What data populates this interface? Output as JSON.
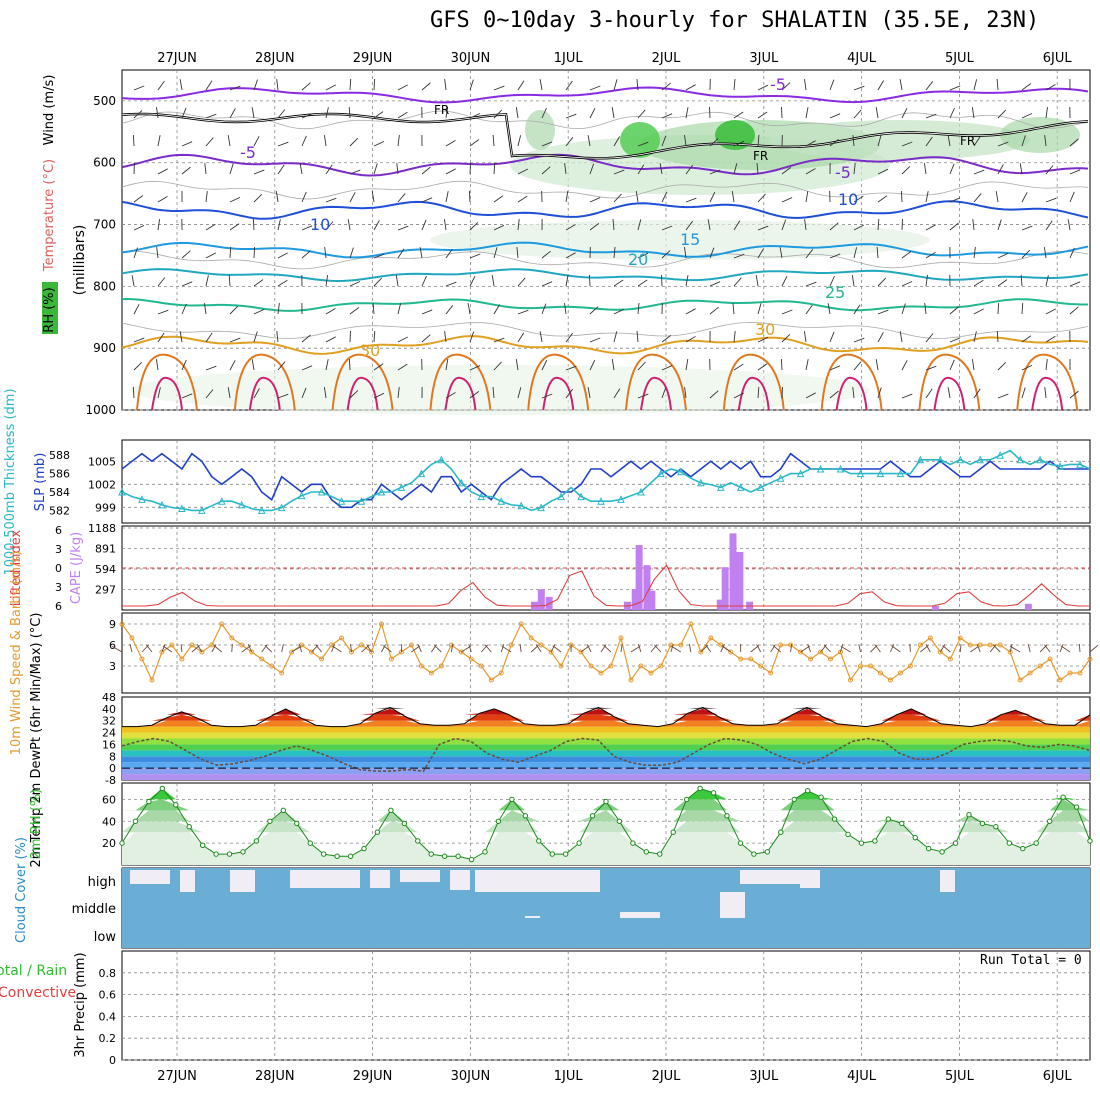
{
  "title": "GFS 0~10day 3-hourly for SHALATIN (35.5E, 23N)",
  "date_labels": [
    "27JUN",
    "28JUN",
    "29JUN",
    "30JUN",
    "1JUL",
    "2JUL",
    "3JUL",
    "4JUL",
    "5JUL",
    "6JUL"
  ],
  "run_total_label": "Run Total = 0",
  "colors": {
    "grid": "#888888",
    "rh_green": "#2e9e2e",
    "slp": "#1f3fc8",
    "thickness": "#2ab8c8",
    "lifted": "#e04040",
    "cape": "#c080f0",
    "wind": "#e69a2e",
    "barb": "#6b4a3a",
    "dewpt": "#6a4a3a",
    "rh2m": "#2ebf2e",
    "cloud": "#6aaed6",
    "cloud_clear": "#f0eef4"
  },
  "chart_data": [
    {
      "type": "contour",
      "panel": "upper-air",
      "ylabel_parts": [
        "RH (%)",
        "Temperature (°C)",
        "Wind (m/s)"
      ],
      "ylabel_axis": "(millibars)",
      "yticks": [
        500,
        600,
        700,
        800,
        900,
        1000
      ],
      "ylim": [
        450,
        1000
      ],
      "isotherm_labels": [
        {
          "text": "-5",
          "x": 6.5
        },
        {
          "text": "-5",
          "x": 0.9
        },
        {
          "text": "-5",
          "x": 5.2
        },
        {
          "text": "10",
          "x": 1.4
        },
        {
          "text": "10",
          "x": 5.5
        },
        {
          "text": "15",
          "x": 4.7
        },
        {
          "text": "20",
          "x": 4.4
        },
        {
          "text": "25",
          "x": 5.7
        },
        {
          "text": "30",
          "x": 5.1
        },
        {
          "text": "30",
          "x": 2.0
        }
      ],
      "freezing_label": "FR"
    },
    {
      "type": "line",
      "panel": "slp-thickness",
      "ylabel_left": "1000-500mb Thickness (dm)",
      "ylabel_right": "SLP (mb)",
      "yticks_thickness": [
        582,
        584,
        586,
        588
      ],
      "yticks_slp": [
        999,
        1002,
        1005
      ],
      "series": [
        {
          "name": "SLP (mb)",
          "values": [
            1004,
            1005,
            1006,
            1005,
            1006,
            1005,
            1004,
            1006,
            1005,
            1003,
            1002,
            1003,
            1004,
            1003,
            1001,
            1000,
            1003,
            1002,
            1001,
            1002,
            1002,
            1000,
            999,
            999,
            1000,
            1000,
            1002,
            1001,
            1000,
            1001,
            1002,
            1001,
            1003,
            1003,
            1001,
            1002,
            1001,
            1000,
            1002,
            1003,
            1004,
            1003,
            1003,
            1002,
            1001,
            1001,
            1002,
            1004,
            1004,
            1003,
            1004,
            1005,
            1004,
            1005,
            1004,
            1003,
            1004,
            1003,
            1004,
            1005,
            1004,
            1005,
            1004,
            1005,
            1003,
            1003,
            1004,
            1006,
            1005,
            1004,
            1004,
            1004,
            1004,
            1004,
            1004,
            1004,
            1004,
            1005,
            1004,
            1003,
            1003,
            1004,
            1005,
            1004,
            1003,
            1003,
            1004,
            1005,
            1004,
            1004,
            1004,
            1004,
            1004,
            1005,
            1004,
            1004,
            1004,
            1004
          ]
        },
        {
          "name": "1000-500mb Thickness (dm)",
          "values": [
            584.0,
            583.5,
            583.2,
            583.0,
            582.6,
            582.3,
            582.2,
            582.0,
            582.0,
            582.5,
            583.0,
            583.0,
            582.6,
            582.2,
            582.0,
            582.0,
            582.3,
            583.0,
            583.6,
            584.0,
            584.0,
            583.5,
            583.0,
            583.0,
            583.0,
            583.5,
            584.0,
            584.0,
            584.5,
            585.0,
            586.0,
            587.0,
            587.5,
            586.5,
            585.0,
            584.0,
            583.5,
            583.5,
            583.0,
            582.6,
            582.5,
            582.0,
            582.3,
            583.0,
            583.5,
            584.5,
            583.5,
            583.0,
            583.0,
            583.0,
            583.2,
            583.6,
            584.0,
            585.0,
            586.0,
            586.5,
            586.2,
            585.5,
            585.0,
            584.8,
            584.5,
            585.0,
            584.5,
            584.0,
            584.5,
            585.0,
            585.5,
            586.0,
            586.0,
            586.5,
            586.5,
            586.5,
            586.5,
            586.0,
            586.0,
            586.0,
            586.0,
            586.0,
            586.0,
            586.0,
            587.5,
            587.5,
            587.5,
            587.0,
            587.5,
            587.0,
            587.5,
            587.5,
            588.0,
            588.5,
            587.5,
            587.0,
            587.5,
            587.0,
            586.8,
            587.0,
            587.0,
            586.5
          ]
        }
      ]
    },
    {
      "type": "bar",
      "panel": "cape-lifted-index",
      "ylabel_left": "Lifted Index",
      "ylabel_right": "CAPE (J/kg)",
      "yticks_li": [
        -6,
        -3,
        0,
        3,
        6
      ],
      "yticks_cape": [
        297,
        594,
        891,
        1188
      ],
      "series": [
        {
          "name": "CAPE (J/kg)",
          "bars": [
            {
              "x": 3.65,
              "v": 120
            },
            {
              "x": 3.72,
              "v": 300
            },
            {
              "x": 3.8,
              "v": 190
            },
            {
              "x": 4.6,
              "v": 120
            },
            {
              "x": 4.68,
              "v": 300
            },
            {
              "x": 4.72,
              "v": 940
            },
            {
              "x": 4.8,
              "v": 650
            },
            {
              "x": 4.85,
              "v": 280
            },
            {
              "x": 5.55,
              "v": 150
            },
            {
              "x": 5.6,
              "v": 620
            },
            {
              "x": 5.68,
              "v": 1110
            },
            {
              "x": 5.75,
              "v": 840
            },
            {
              "x": 5.85,
              "v": 120
            },
            {
              "x": 7.75,
              "v": 60
            },
            {
              "x": 8.7,
              "v": 90
            }
          ]
        },
        {
          "name": "Lifted Index",
          "values_note": "peaks near 0 around 2JUL and 3JUL"
        }
      ]
    },
    {
      "type": "line",
      "panel": "10m-wind",
      "ylabel": "10m Wind Speed & Barbs (m/s)",
      "yticks": [
        3,
        6,
        9
      ],
      "series": [
        {
          "name": "10m Wind Speed",
          "values": [
            9,
            7,
            4,
            1,
            5,
            6,
            4,
            6,
            5,
            6,
            9,
            7,
            6,
            5,
            4,
            3,
            2,
            5,
            6,
            5,
            4,
            6,
            7,
            5,
            6,
            5,
            9,
            4,
            5,
            6,
            3,
            2,
            3,
            6,
            5,
            4,
            3,
            1,
            2,
            6,
            9,
            7,
            6,
            5,
            3,
            6,
            5,
            3,
            2,
            3,
            7,
            1,
            3,
            2,
            3,
            6,
            6,
            9,
            5,
            7,
            6,
            5,
            4,
            4,
            3,
            2,
            6,
            6,
            5,
            4,
            5,
            4,
            5,
            1,
            3,
            3,
            2,
            1,
            2,
            3,
            6,
            7,
            5,
            4,
            7,
            6,
            6,
            6,
            6,
            5,
            1,
            2,
            3,
            4,
            1,
            2,
            2,
            4
          ]
        }
      ]
    },
    {
      "type": "area",
      "panel": "2m-temp",
      "ylabel": "2m Temp 2m DewPt (6hr Min/Max) (°C)",
      "yticks": [
        -8,
        0,
        8,
        16,
        24,
        32,
        40,
        48
      ],
      "series": [
        {
          "name": "2m Temp",
          "values": [
            28,
            28,
            29,
            34,
            38,
            34,
            29,
            28,
            28,
            29,
            35,
            40,
            34,
            29,
            28,
            28,
            30,
            37,
            41,
            35,
            30,
            29,
            29,
            30,
            37,
            40,
            36,
            30,
            29,
            29,
            30,
            37,
            41,
            35,
            30,
            29,
            28,
            30,
            37,
            41,
            35,
            30,
            29,
            29,
            30,
            36,
            41,
            35,
            30,
            29,
            28,
            30,
            36,
            40,
            35,
            30,
            29,
            28,
            30,
            36,
            39,
            35,
            30,
            29,
            29,
            36
          ]
        },
        {
          "name": "2m DewPt",
          "values": [
            15,
            18,
            20,
            18,
            12,
            6,
            2,
            3,
            5,
            8,
            12,
            15,
            12,
            8,
            3,
            -1,
            -2,
            -2,
            -1,
            -2,
            16,
            20,
            18,
            10,
            6,
            4,
            8,
            12,
            18,
            20,
            19,
            8,
            4,
            2,
            2,
            4,
            10,
            16,
            20,
            19,
            16,
            10,
            6,
            3,
            6,
            12,
            18,
            20,
            18,
            10,
            6,
            6,
            10,
            16,
            18,
            19,
            18,
            15,
            14,
            16,
            15,
            12
          ]
        }
      ]
    },
    {
      "type": "area",
      "panel": "2m-rh",
      "ylabel": "2m RH (%)",
      "yticks": [
        20,
        40,
        60
      ],
      "series": [
        {
          "name": "2m RH",
          "values": [
            20,
            40,
            58,
            70,
            55,
            35,
            18,
            10,
            10,
            12,
            22,
            40,
            50,
            38,
            20,
            10,
            8,
            8,
            15,
            30,
            50,
            38,
            22,
            10,
            8,
            8,
            5,
            12,
            40,
            60,
            45,
            22,
            10,
            10,
            20,
            45,
            58,
            40,
            20,
            12,
            10,
            30,
            60,
            70,
            66,
            45,
            20,
            10,
            12,
            30,
            60,
            68,
            62,
            42,
            28,
            20,
            22,
            42,
            38,
            25,
            15,
            12,
            20,
            46,
            38,
            35,
            20,
            15,
            20,
            40,
            62,
            53,
            22
          ]
        }
      ]
    },
    {
      "type": "heatmap",
      "panel": "cloud-cover",
      "ylabel": "Cloud Cover (%)",
      "yticks": [
        "high",
        "middle",
        "low"
      ]
    },
    {
      "type": "bar",
      "panel": "precip",
      "ylabel": "3hr Precip (mm)",
      "ylabel_left": "Total / Rain",
      "ylabel_left2": "Convective",
      "yticks": [
        0,
        0.2,
        0.4,
        0.6,
        0.8
      ],
      "ylim": [
        0,
        1
      ],
      "values": []
    }
  ]
}
